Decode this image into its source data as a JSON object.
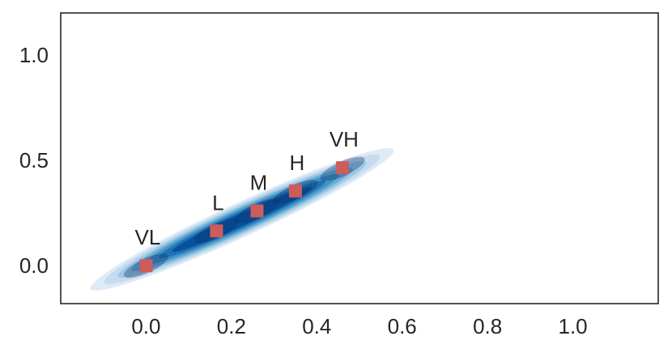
{
  "chart_data": {
    "type": "scatter",
    "title": "",
    "xlabel": "",
    "ylabel": "",
    "xlim": [
      -0.2,
      1.2
    ],
    "ylim": [
      -0.18,
      1.2
    ],
    "grid": false,
    "x_ticks": [
      "0.0",
      "0.2",
      "0.4",
      "0.6",
      "0.8",
      "1.0"
    ],
    "x_tick_values": [
      0.0,
      0.2,
      0.4,
      0.6,
      0.8,
      1.0
    ],
    "y_ticks": [
      "0.0",
      "0.5",
      "1.0"
    ],
    "y_tick_values": [
      0.0,
      0.5,
      1.0
    ],
    "points": [
      {
        "label": "VL",
        "x": 0.0,
        "y": 0.0
      },
      {
        "label": "L",
        "x": 0.165,
        "y": 0.165
      },
      {
        "label": "M",
        "x": 0.26,
        "y": 0.26
      },
      {
        "label": "H",
        "x": 0.35,
        "y": 0.355
      },
      {
        "label": "VH",
        "x": 0.46,
        "y": 0.465
      }
    ],
    "density": {
      "description_axis": "diagonal band",
      "start": [
        -0.13,
        -0.11
      ],
      "end": [
        0.58,
        0.55
      ],
      "peaks": [
        0.0,
        0.165,
        0.26,
        0.35,
        0.46
      ]
    },
    "colors": {
      "marker": "#cd5c5c",
      "density_light": "#deebf7",
      "density_dark": "#08519c",
      "axis": "#262626"
    }
  }
}
